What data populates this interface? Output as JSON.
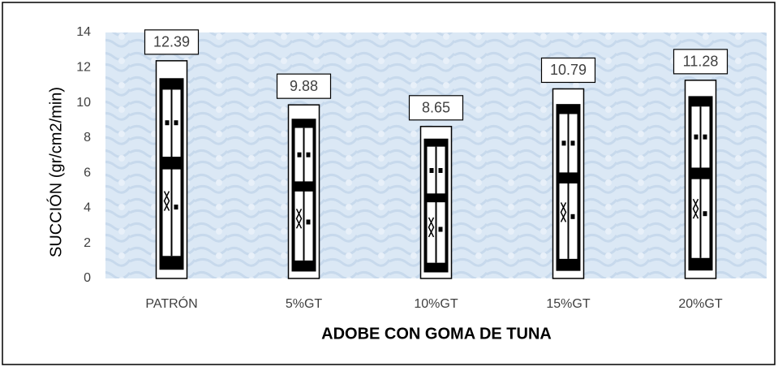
{
  "chart_data": {
    "type": "bar",
    "categories": [
      "PATRÓN",
      "5%GT",
      "10%GT",
      "15%GT",
      "20%GT"
    ],
    "values": [
      12.39,
      9.88,
      8.65,
      10.79,
      11.28
    ],
    "x_label": "ADOBE CON GOMA DE TUNA",
    "y_label": "SUCCIÓN (gr/cm2/min)",
    "ylim": [
      0,
      14
    ],
    "yticks": [
      0,
      2,
      4,
      6,
      8,
      10,
      12,
      14
    ],
    "data_labels": true,
    "color": "#ffffff"
  }
}
